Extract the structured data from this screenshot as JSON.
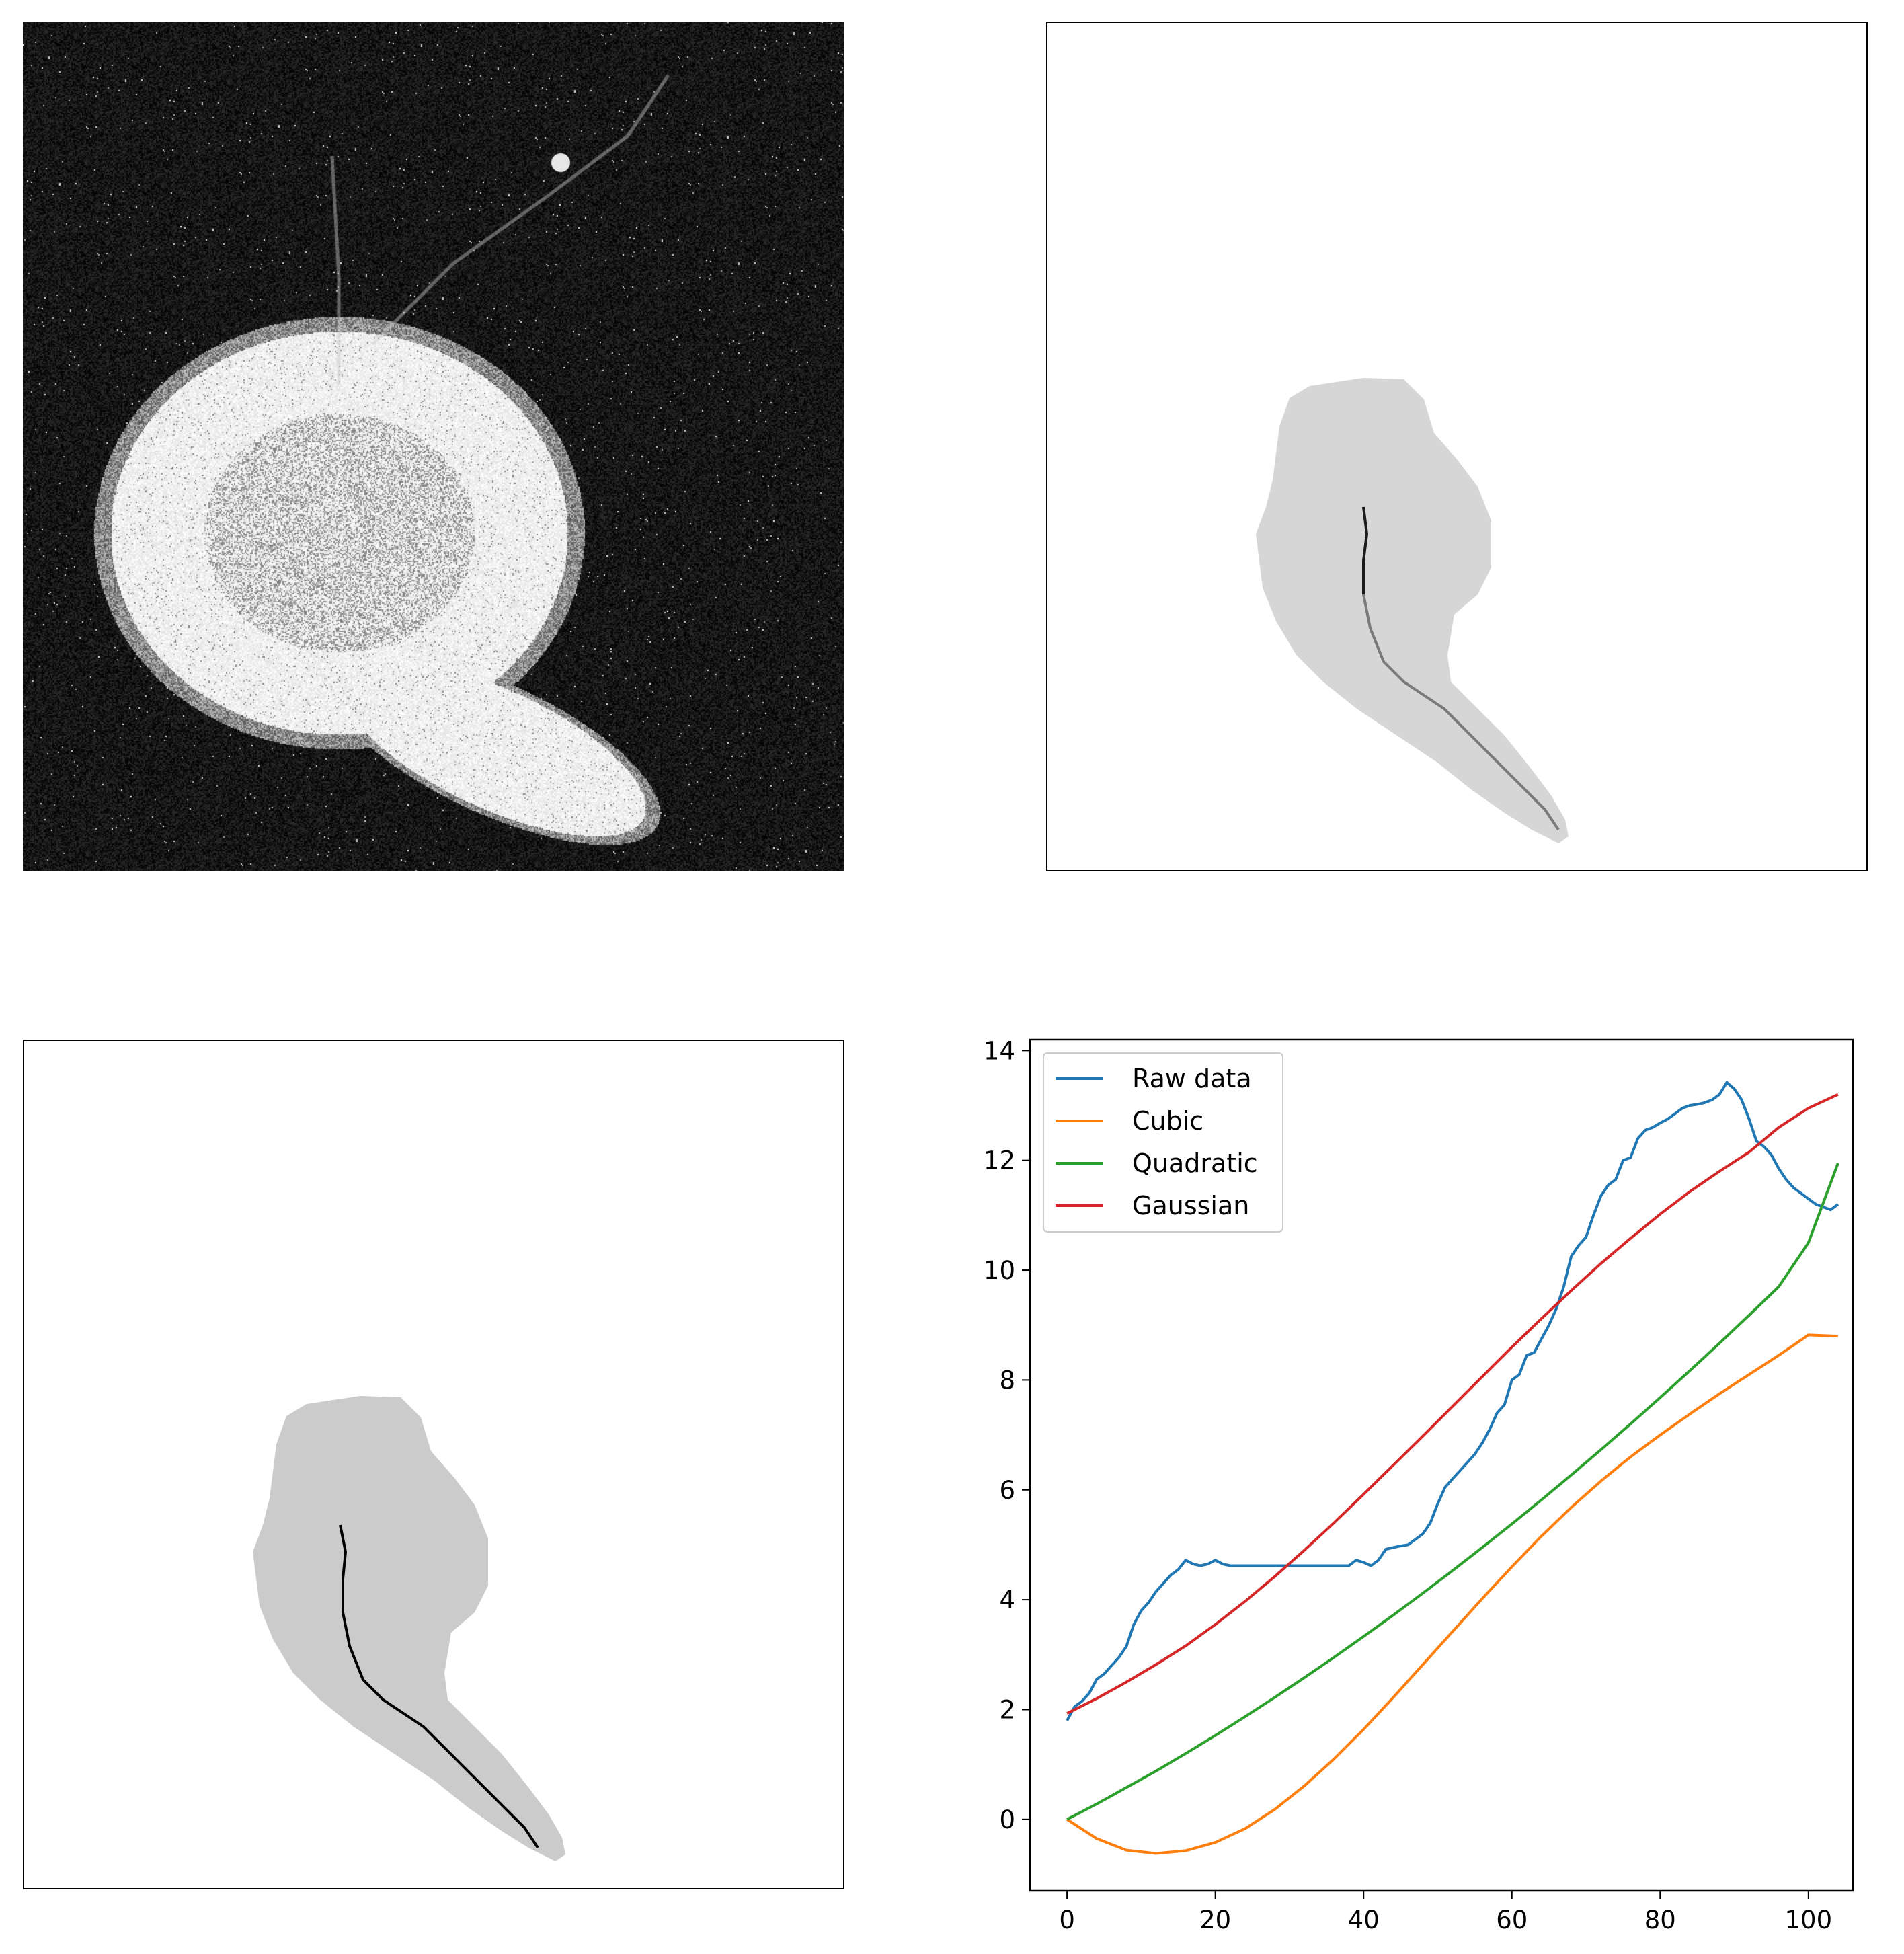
{
  "panels": {
    "raw_image": {
      "description_icon": "fluorescence-micrograph-icon"
    },
    "mask_gray_centerline": {
      "mask_color": "#d6d6d6",
      "centerline_color": "#7a7a7a"
    },
    "mask_black_centerline": {
      "mask_color": "#cbcbcb",
      "centerline_color": "#000000"
    }
  },
  "chart_data": {
    "type": "line",
    "title": "",
    "xlabel": "",
    "ylabel": "",
    "xlim": [
      -5,
      106
    ],
    "ylim": [
      -1.3,
      14.2
    ],
    "x_ticks": [
      0,
      20,
      40,
      60,
      80,
      100
    ],
    "y_ticks": [
      0,
      2,
      4,
      6,
      8,
      10,
      12,
      14
    ],
    "x_tick_labels": [
      "0",
      "20",
      "40",
      "60",
      "80",
      "100"
    ],
    "y_tick_labels": [
      "0",
      "2",
      "4",
      "6",
      "8",
      "10",
      "12",
      "14"
    ],
    "grid": false,
    "legend_position": "top-left",
    "series": [
      {
        "name": "Raw data",
        "color": "#1f77b4",
        "x": [
          0,
          1,
          2,
          3,
          4,
          5,
          6,
          7,
          8,
          9,
          10,
          11,
          12,
          13,
          14,
          15,
          16,
          17,
          18,
          19,
          20,
          21,
          22,
          24,
          26,
          28,
          30,
          32,
          34,
          36,
          37,
          38,
          39,
          40,
          41,
          42,
          43,
          44,
          45,
          46,
          47,
          48,
          49,
          50,
          51,
          52,
          53,
          54,
          55,
          56,
          57,
          58,
          59,
          60,
          61,
          62,
          63,
          64,
          65,
          66,
          67,
          68,
          69,
          70,
          71,
          72,
          73,
          74,
          75,
          76,
          77,
          78,
          79,
          80,
          81,
          82,
          83,
          84,
          85,
          86,
          87,
          88,
          89,
          90,
          91,
          92,
          93,
          94,
          95,
          96,
          97,
          98,
          99,
          100,
          101,
          102,
          103,
          104
        ],
        "values": [
          1.8,
          2.05,
          2.15,
          2.3,
          2.55,
          2.65,
          2.8,
          2.95,
          3.15,
          3.55,
          3.8,
          3.95,
          4.15,
          4.3,
          4.45,
          4.55,
          4.72,
          4.65,
          4.62,
          4.65,
          4.72,
          4.65,
          4.62,
          4.62,
          4.62,
          4.62,
          4.62,
          4.62,
          4.62,
          4.62,
          4.62,
          4.62,
          4.72,
          4.68,
          4.62,
          4.72,
          4.92,
          4.95,
          4.98,
          5.0,
          5.1,
          5.2,
          5.4,
          5.75,
          6.05,
          6.2,
          6.35,
          6.5,
          6.65,
          6.85,
          7.1,
          7.4,
          7.55,
          8.0,
          8.1,
          8.45,
          8.5,
          8.75,
          9.0,
          9.3,
          9.7,
          10.25,
          10.45,
          10.6,
          11.0,
          11.35,
          11.55,
          11.65,
          12.0,
          12.05,
          12.4,
          12.55,
          12.6,
          12.68,
          12.75,
          12.85,
          12.95,
          13.0,
          13.02,
          13.05,
          13.1,
          13.2,
          13.42,
          13.3,
          13.1,
          12.75,
          12.35,
          12.25,
          12.1,
          11.85,
          11.65,
          11.5,
          11.4,
          11.3,
          11.2,
          11.15,
          11.1,
          11.2
        ],
        "note_x_subsampled": false
      },
      {
        "name": "Cubic",
        "color": "#ff7f0e",
        "x": [
          0,
          4,
          8,
          12,
          16,
          20,
          24,
          28,
          32,
          36,
          40,
          44,
          48,
          52,
          56,
          60,
          64,
          68,
          72,
          76,
          80,
          84,
          88,
          92,
          96,
          100,
          104
        ],
        "values": [
          0.0,
          -0.35,
          -0.56,
          -0.62,
          -0.57,
          -0.42,
          -0.17,
          0.18,
          0.61,
          1.1,
          1.64,
          2.22,
          2.82,
          3.42,
          4.02,
          4.6,
          5.16,
          5.68,
          6.16,
          6.6,
          7.0,
          7.38,
          7.75,
          8.1,
          8.45,
          8.82,
          8.8
        ]
      },
      {
        "name": "Quadratic",
        "color": "#2ca02c",
        "x": [
          0,
          4,
          8,
          12,
          16,
          20,
          24,
          28,
          32,
          36,
          40,
          44,
          48,
          52,
          56,
          60,
          64,
          68,
          72,
          76,
          80,
          84,
          88,
          92,
          96,
          100,
          104
        ],
        "values": [
          0.0,
          0.28,
          0.58,
          0.88,
          1.2,
          1.53,
          1.87,
          2.22,
          2.58,
          2.95,
          3.33,
          3.72,
          4.12,
          4.53,
          4.95,
          5.38,
          5.82,
          6.27,
          6.73,
          7.2,
          7.68,
          8.17,
          8.67,
          9.18,
          9.7,
          10.5,
          11.95
        ]
      },
      {
        "name": "Gaussian",
        "color": "#d62728",
        "x": [
          0,
          4,
          8,
          12,
          16,
          20,
          24,
          28,
          32,
          36,
          40,
          44,
          48,
          52,
          56,
          60,
          64,
          68,
          72,
          76,
          80,
          84,
          88,
          92,
          96,
          100,
          104
        ],
        "values": [
          1.93,
          2.2,
          2.5,
          2.82,
          3.16,
          3.55,
          3.97,
          4.42,
          4.9,
          5.4,
          5.92,
          6.45,
          6.98,
          7.52,
          8.06,
          8.6,
          9.12,
          9.63,
          10.12,
          10.58,
          11.02,
          11.43,
          11.8,
          12.15,
          12.6,
          12.95,
          13.2
        ]
      }
    ]
  }
}
